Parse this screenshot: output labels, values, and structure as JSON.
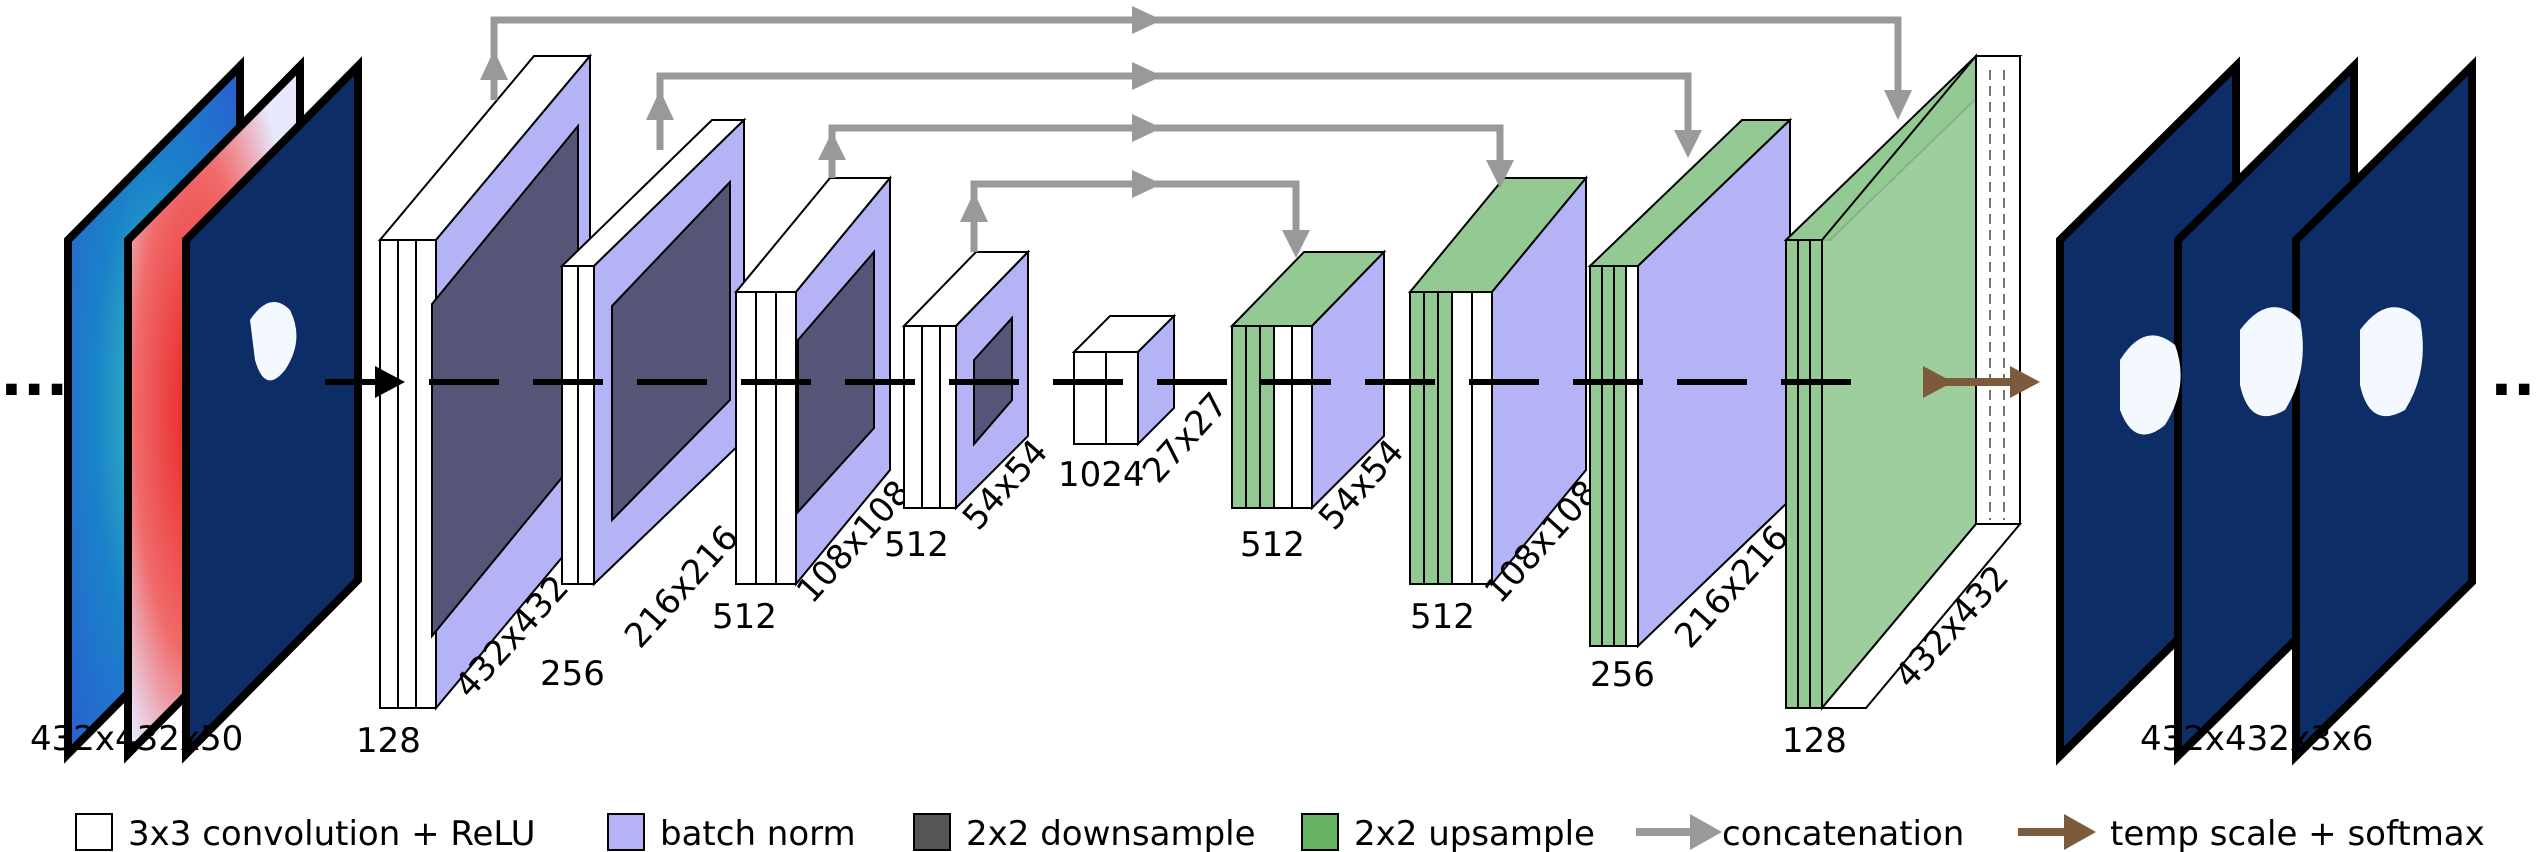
{
  "input": {
    "dims_label": "432x432x50",
    "ellipsis": "..."
  },
  "output": {
    "dims_label": "432x432x3x6",
    "ellipsis": "..."
  },
  "encoder": [
    {
      "channels": "128",
      "size": "432x432"
    },
    {
      "channels": "256",
      "size": "216x216"
    },
    {
      "channels": "512",
      "size": "108x108"
    },
    {
      "channels": "512",
      "size": "54x54"
    }
  ],
  "bottleneck": {
    "channels": "1024",
    "size": "27x27"
  },
  "decoder": [
    {
      "channels": "512",
      "size": "54x54"
    },
    {
      "channels": "512",
      "size": "108x108"
    },
    {
      "channels": "256",
      "size": "216x216"
    },
    {
      "channels": "128",
      "size": "432x432"
    }
  ],
  "legend": [
    {
      "label": "3x3 convolution + ReLU",
      "swatch": "conv"
    },
    {
      "label": "batch norm",
      "swatch": "bn"
    },
    {
      "label": "2x2 downsample",
      "swatch": "down"
    },
    {
      "label": "2x2 upsample",
      "swatch": "up"
    },
    {
      "label": "concatenation",
      "swatch": "concat-arrow"
    },
    {
      "label": "temp scale + softmax",
      "swatch": "softmax-arrow"
    }
  ],
  "colors": {
    "conv": "#ffffff",
    "batch_norm": "#b3b3f5",
    "downsample": "#555577",
    "upsample": "#93c993",
    "concat_arrow": "#999999",
    "softmax_arrow": "#7d5a3c",
    "map_dark": "#0d2d66"
  }
}
